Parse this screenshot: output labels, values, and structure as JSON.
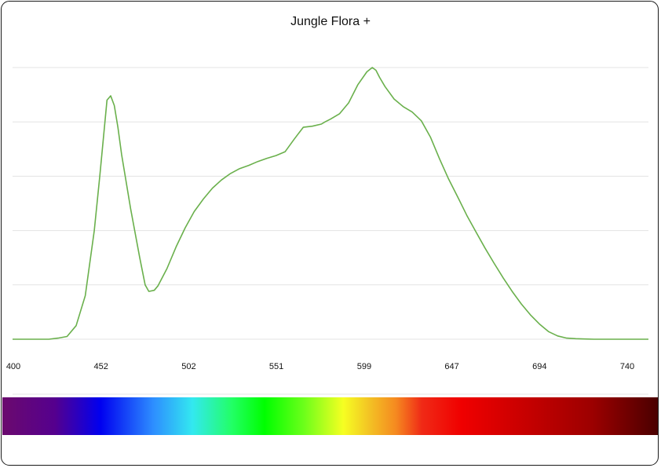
{
  "chart_data": {
    "type": "line",
    "title": "Jungle Flora +",
    "xlabel": "",
    "ylabel": "",
    "x_ticks": [
      "400",
      "452",
      "502",
      "551",
      "599",
      "647",
      "694",
      "740"
    ],
    "xlim": [
      400,
      750
    ],
    "ylim": [
      0,
      5
    ],
    "grid": true,
    "legend": "none",
    "line_color": "#6ab04c",
    "spectrum_bar": true,
    "series": [
      {
        "x": [
          400,
          420,
          425,
          430,
          435,
          440,
          445,
          448,
          450,
          452,
          454,
          456,
          458,
          460,
          465,
          470,
          473,
          475,
          478,
          480,
          485,
          490,
          495,
          500,
          505,
          510,
          515,
          520,
          525,
          530,
          535,
          540,
          545,
          550,
          555,
          560,
          565,
          570,
          572,
          575,
          580,
          585,
          590,
          595,
          598,
          600,
          602,
          605,
          610,
          615,
          620,
          625,
          630,
          635,
          640,
          645,
          650,
          655,
          660,
          665,
          670,
          675,
          680,
          685,
          690,
          695,
          700,
          705,
          710,
          715,
          720,
          725,
          730,
          740,
          750
        ],
        "values": [
          0,
          0,
          0.02,
          0.05,
          0.25,
          0.8,
          2.0,
          3.0,
          3.7,
          4.4,
          4.48,
          4.3,
          3.9,
          3.4,
          2.4,
          1.5,
          1.0,
          0.88,
          0.9,
          0.98,
          1.3,
          1.7,
          2.05,
          2.35,
          2.58,
          2.78,
          2.93,
          3.05,
          3.14,
          3.2,
          3.27,
          3.33,
          3.38,
          3.45,
          3.68,
          3.9,
          3.92,
          3.96,
          4.0,
          4.05,
          4.15,
          4.35,
          4.68,
          4.92,
          5.0,
          4.95,
          4.82,
          4.65,
          4.42,
          4.28,
          4.18,
          4.02,
          3.72,
          3.32,
          2.95,
          2.62,
          2.28,
          1.98,
          1.68,
          1.4,
          1.13,
          0.88,
          0.65,
          0.45,
          0.28,
          0.14,
          0.06,
          0.02,
          0.01,
          0.005,
          0,
          0,
          0,
          0,
          0
        ]
      }
    ]
  }
}
